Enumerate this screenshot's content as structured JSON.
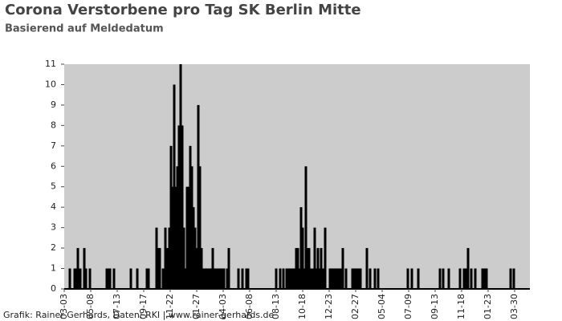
{
  "chart_data": {
    "type": "bar",
    "title": "Corona Verstorbene pro Tag SK Berlin Mitte",
    "subtitle": "Basierend auf Meldedatum",
    "footer": "Grafik: Rainer Gerhards, Daten: RKI | www.rainer-gerhards.de",
    "color": "#000000",
    "background": "#cccccc",
    "xlim": [
      0,
      1160
    ],
    "xticks": [
      {
        "value": 0,
        "label": "03-03"
      },
      {
        "value": 66,
        "label": "05-08"
      },
      {
        "value": 132,
        "label": "07-13"
      },
      {
        "value": 198,
        "label": "09-17"
      },
      {
        "value": 264,
        "label": "11-22"
      },
      {
        "value": 330,
        "label": "01-27"
      },
      {
        "value": 396,
        "label": "04-03"
      },
      {
        "value": 462,
        "label": "06-08"
      },
      {
        "value": 528,
        "label": "08-13"
      },
      {
        "value": 594,
        "label": "10-18"
      },
      {
        "value": 660,
        "label": "12-23"
      },
      {
        "value": 726,
        "label": "02-27"
      },
      {
        "value": 792,
        "label": "05-04"
      },
      {
        "value": 858,
        "label": "07-09"
      },
      {
        "value": 924,
        "label": "09-13"
      },
      {
        "value": 990,
        "label": "11-18"
      },
      {
        "value": 1056,
        "label": "01-23"
      },
      {
        "value": 1122,
        "label": "03-30"
      }
    ],
    "ylim": [
      0,
      11
    ],
    "yticks": [
      0,
      1,
      2,
      3,
      4,
      5,
      6,
      7,
      8,
      9,
      10,
      11
    ],
    "x": [
      14,
      26,
      30,
      34,
      40,
      50,
      54,
      64,
      106,
      110,
      114,
      124,
      166,
      182,
      206,
      210,
      230,
      234,
      238,
      246,
      252,
      258,
      262,
      266,
      270,
      274,
      278,
      282,
      286,
      290,
      294,
      298,
      302,
      306,
      310,
      314,
      318,
      322,
      326,
      330,
      334,
      338,
      342,
      346,
      350,
      354,
      358,
      362,
      366,
      370,
      374,
      378,
      382,
      386,
      390,
      394,
      398,
      406,
      410,
      434,
      444,
      454,
      458,
      528,
      538,
      546,
      554,
      560,
      566,
      572,
      578,
      582,
      586,
      590,
      594,
      598,
      602,
      606,
      610,
      614,
      620,
      624,
      628,
      632,
      636,
      640,
      644,
      650,
      662,
      666,
      670,
      676,
      680,
      684,
      688,
      694,
      702,
      718,
      722,
      726,
      730,
      734,
      738,
      754,
      762,
      774,
      782,
      856,
      866,
      882,
      936,
      944,
      958,
      986,
      996,
      1000,
      1006,
      1014,
      1024,
      1042,
      1048,
      1052,
      1112,
      1120
    ],
    "values": [
      1,
      1,
      1,
      2,
      1,
      2,
      1,
      1,
      1,
      1,
      1,
      1,
      1,
      1,
      1,
      1,
      3,
      2,
      2,
      1,
      3,
      2,
      3,
      7,
      5,
      10,
      5,
      6,
      8,
      11,
      8,
      3,
      1,
      5,
      5,
      7,
      6,
      4,
      3,
      2,
      9,
      6,
      2,
      1,
      1,
      1,
      1,
      1,
      1,
      2,
      1,
      1,
      1,
      1,
      1,
      1,
      1,
      1,
      2,
      1,
      1,
      1,
      1,
      1,
      1,
      1,
      1,
      1,
      1,
      1,
      2,
      2,
      1,
      4,
      3,
      1,
      6,
      2,
      2,
      1,
      1,
      3,
      1,
      2,
      1,
      2,
      1,
      3,
      1,
      1,
      1,
      1,
      1,
      1,
      1,
      2,
      1,
      1,
      1,
      1,
      1,
      1,
      1,
      2,
      1,
      1,
      1,
      1,
      1,
      1,
      1,
      1,
      1,
      1,
      1,
      1,
      2,
      1,
      1,
      1,
      1,
      1,
      1,
      1
    ]
  }
}
